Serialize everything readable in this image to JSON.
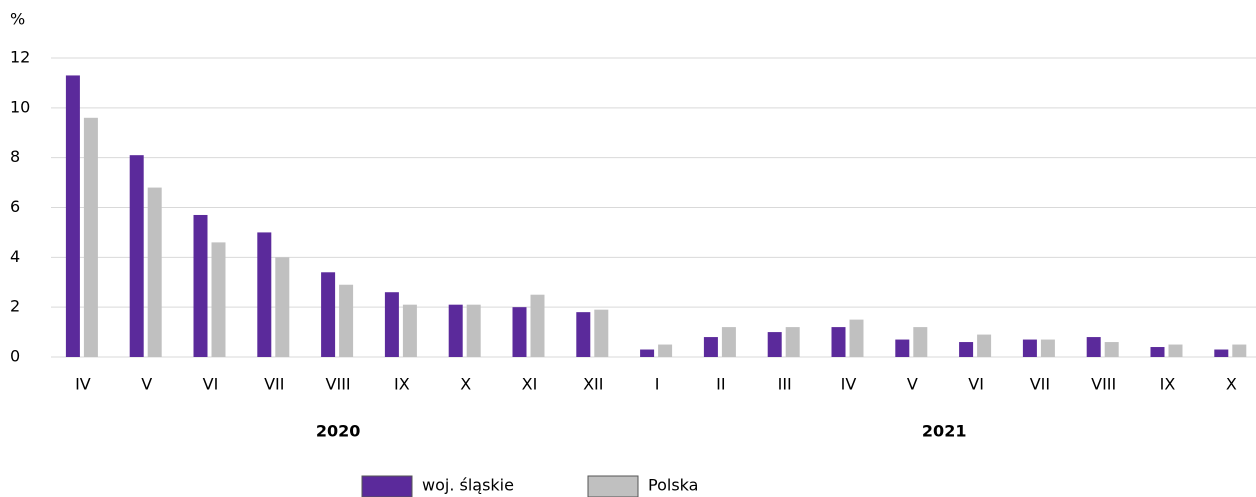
{
  "chart_data": {
    "type": "bar",
    "y_unit": "%",
    "categories": [
      "IV",
      "V",
      "VI",
      "VII",
      "VIII",
      "IX",
      "X",
      "XI",
      "XII",
      "I",
      "II",
      "III",
      "IV",
      "V",
      "VI",
      "VII",
      "VIII",
      "IX",
      "X"
    ],
    "x_groups": [
      "2020",
      "2021"
    ],
    "series": [
      {
        "name": "woj. śląskie",
        "color": "#5b2a9b",
        "values": [
          11.3,
          8.1,
          5.7,
          5.0,
          3.4,
          2.6,
          2.1,
          2.0,
          1.8,
          0.3,
          0.8,
          1.0,
          1.2,
          0.7,
          0.6,
          0.7,
          0.8,
          0.4,
          0.3
        ]
      },
      {
        "name": "Polska",
        "color": "#c0c0c0",
        "values": [
          9.6,
          6.8,
          4.6,
          4.0,
          2.9,
          2.1,
          2.1,
          2.5,
          1.9,
          0.5,
          1.2,
          1.2,
          1.5,
          1.2,
          0.9,
          0.7,
          0.6,
          0.5,
          0.5
        ]
      }
    ],
    "ylim": [
      0,
      12
    ],
    "yticks": [
      0,
      2,
      4,
      6,
      8,
      10,
      12
    ],
    "grid": true,
    "legend": "bottom"
  }
}
